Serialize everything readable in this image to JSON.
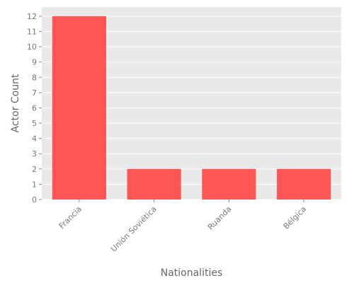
{
  "chart_data": {
    "type": "bar",
    "categories": [
      "Francia",
      "Unión Soviética",
      "Ruanda",
      "Bélgica"
    ],
    "values": [
      12,
      2,
      2,
      2
    ],
    "title": "",
    "xlabel": "Nationalities",
    "ylabel": "Actor Count",
    "ylim": [
      0,
      12.6
    ],
    "yticks": [
      0,
      1,
      2,
      3,
      4,
      5,
      6,
      7,
      8,
      9,
      10,
      11,
      12
    ],
    "grid": true,
    "bar_color": "#ff5555",
    "background_color": "#e9e9e9",
    "grid_color": "#ffffff"
  }
}
